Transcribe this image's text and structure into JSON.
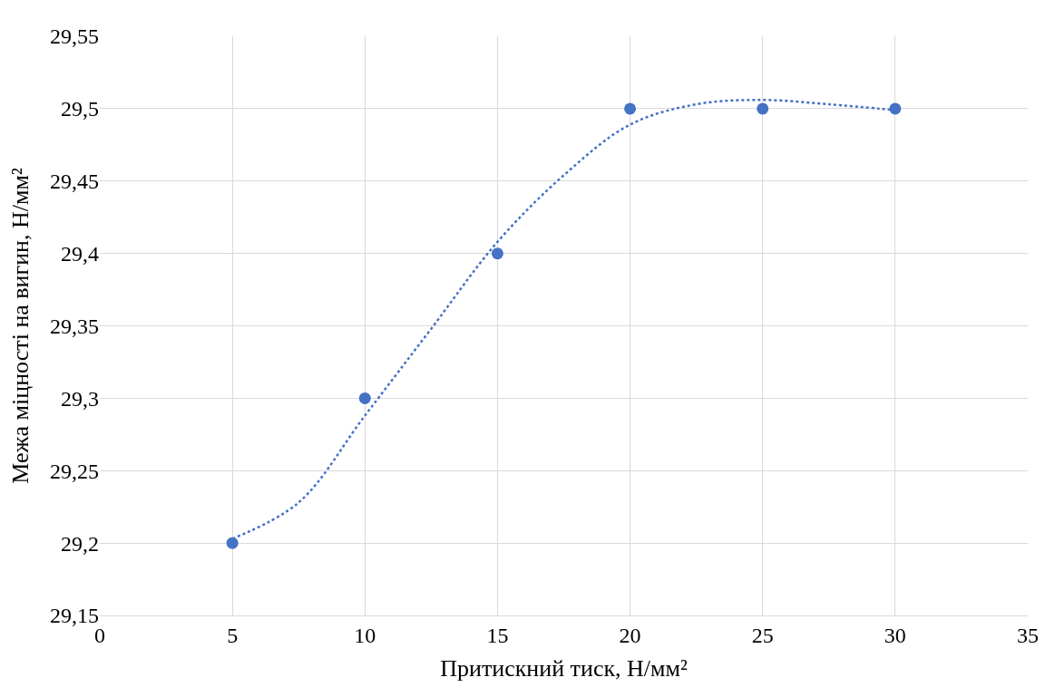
{
  "chart_data": {
    "type": "scatter",
    "xlabel": "Притискний тиск, Н/мм²",
    "ylabel": "Межа міцності на вигин, Н/мм²",
    "x": [
      5,
      10,
      15,
      20,
      25,
      30
    ],
    "series": [
      {
        "color": "#4472c4",
        "marker": "circle",
        "values": [
          29.2,
          29.3,
          29.4,
          29.5,
          29.5,
          29.5
        ]
      },
      {
        "type": "line",
        "color": "#4472c4",
        "marker": "none",
        "line_style": "dotted",
        "x": [
          5,
          7.5,
          10,
          12.5,
          15,
          17.5,
          20,
          22.5,
          25,
          27.5,
          30
        ],
        "values": [
          29.203,
          29.228,
          29.288,
          29.348,
          29.408,
          29.454,
          29.489,
          29.503,
          29.506,
          29.503,
          29.499
        ]
      }
    ],
    "xlim": [
      0,
      35
    ],
    "xticks": [
      0,
      5,
      10,
      15,
      20,
      25,
      30,
      35
    ],
    "ylim": [
      29.15,
      29.55
    ],
    "yticks": [
      {
        "value": 29.15,
        "label": "29,15"
      },
      {
        "value": 29.2,
        "label": "29,2"
      },
      {
        "value": 29.25,
        "label": "29,25"
      },
      {
        "value": 29.3,
        "label": "29,3"
      },
      {
        "value": 29.35,
        "label": "29,35"
      },
      {
        "value": 29.4,
        "label": "29,4"
      },
      {
        "value": 29.45,
        "label": "29,45"
      },
      {
        "value": 29.5,
        "label": "29,5"
      },
      {
        "value": 29.55,
        "label": "29,55"
      }
    ],
    "grid": true
  }
}
